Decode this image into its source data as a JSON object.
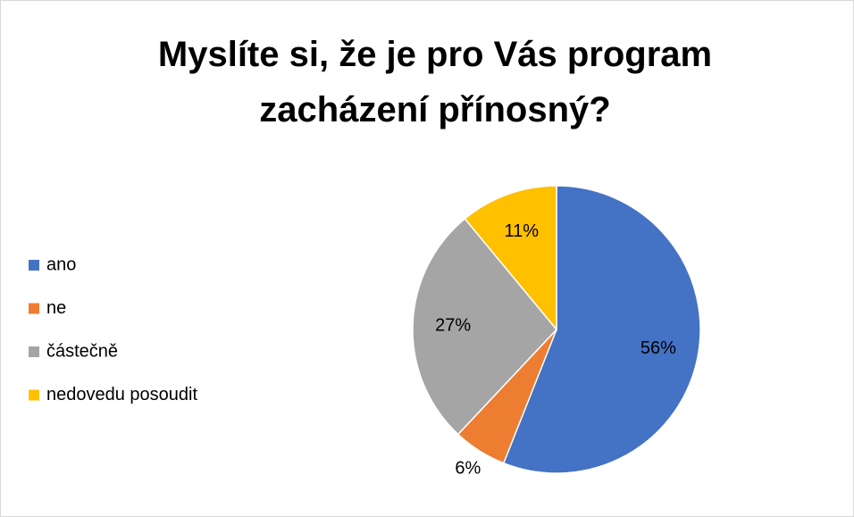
{
  "chart_data": {
    "type": "pie",
    "title": "Myslíte si, že je pro Vás program zacházení přínosný?",
    "categories": [
      "ano",
      "ne",
      "částečně",
      "nedovedu posoudit"
    ],
    "values": [
      56,
      6,
      27,
      11
    ],
    "value_labels": [
      "56%",
      "6%",
      "27%",
      "11%"
    ],
    "colors": [
      "#4472c4",
      "#ed7d31",
      "#a5a5a5",
      "#ffc000"
    ],
    "legend": "left"
  }
}
